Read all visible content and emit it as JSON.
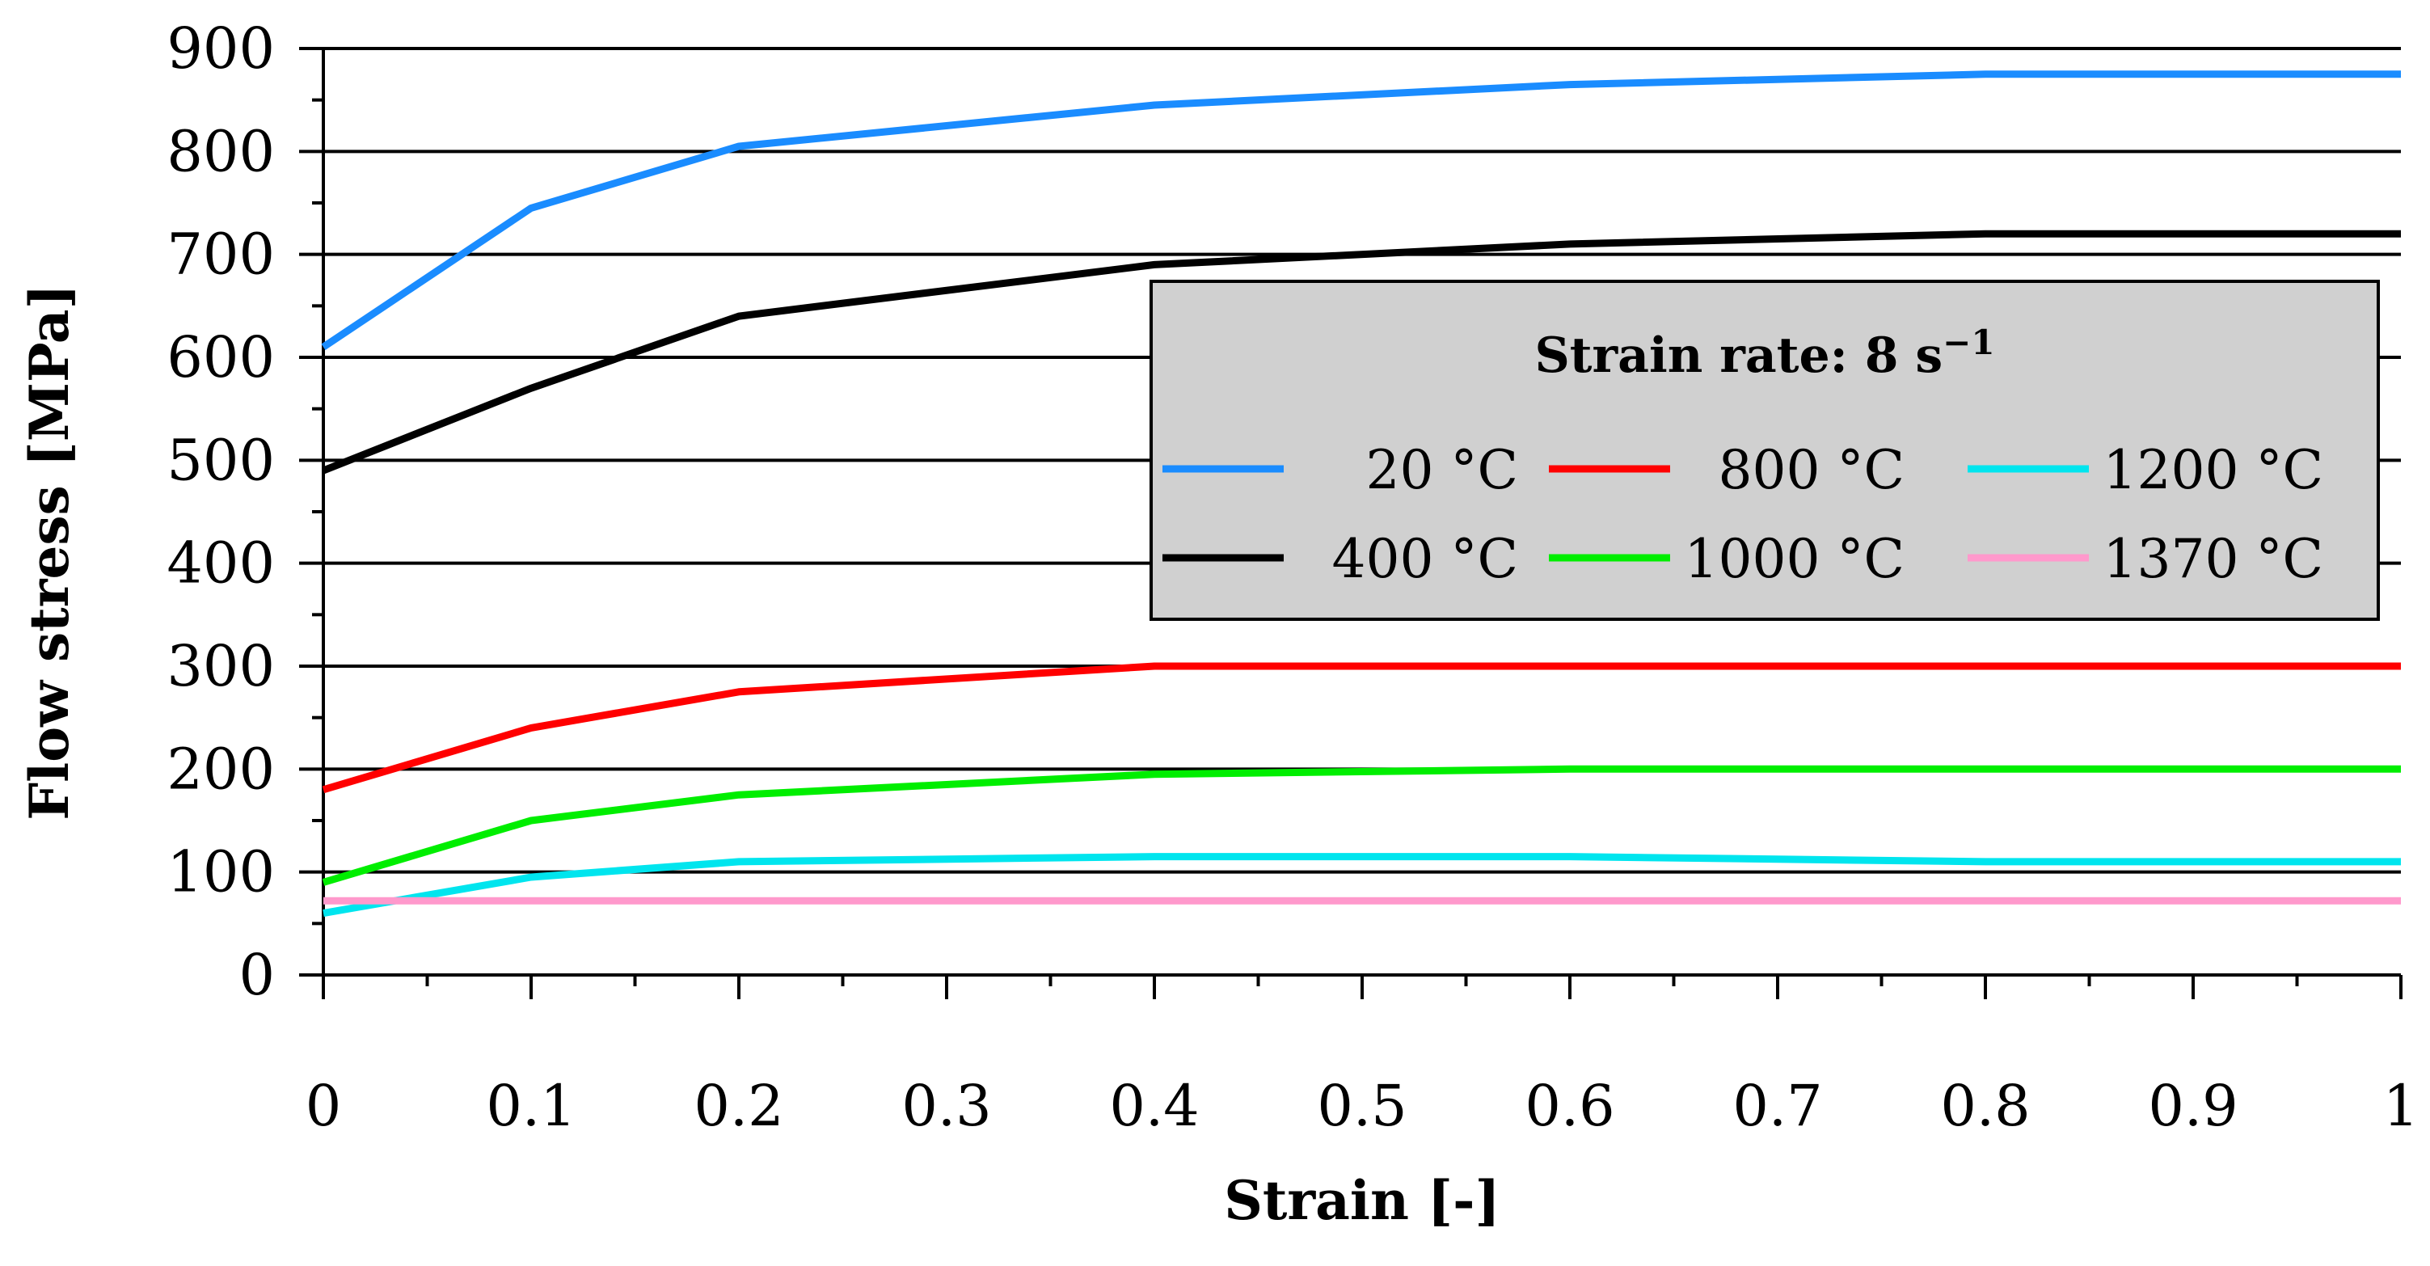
{
  "chart_data": {
    "type": "line",
    "xlabel": "Strain [-]",
    "ylabel": "Flow stress [MPa]",
    "xlim": [
      0,
      1
    ],
    "ylim": [
      0,
      900
    ],
    "x_ticks": [
      0,
      0.1,
      0.2,
      0.3,
      0.4,
      0.5,
      0.6,
      0.7,
      0.8,
      0.9,
      1
    ],
    "x_tick_labels": [
      "0",
      "0.1",
      "0.2",
      "0.3",
      "0.4",
      "0.5",
      "0.6",
      "0.7",
      "0.8",
      "0.9",
      "1"
    ],
    "y_ticks": [
      0,
      100,
      200,
      300,
      400,
      500,
      600,
      700,
      800,
      900
    ],
    "y_tick_labels": [
      "0",
      "100",
      "200",
      "300",
      "400",
      "500",
      "600",
      "700",
      "800",
      "900"
    ],
    "grid": "horizontal",
    "legend": {
      "title": "Strain rate: 8 s",
      "title_superscript": "−1",
      "placement": "upper-right",
      "background": "#d0d0d0"
    },
    "series": [
      {
        "name": "20 °C",
        "color": "#1a8cff",
        "x": [
          0,
          0.1,
          0.2,
          0.4,
          0.6,
          0.8,
          1.0
        ],
        "y": [
          610,
          745,
          805,
          845,
          865,
          875,
          875
        ]
      },
      {
        "name": "400 °C",
        "color": "#000000",
        "x": [
          0,
          0.1,
          0.2,
          0.4,
          0.6,
          0.8,
          1.0
        ],
        "y": [
          490,
          570,
          640,
          690,
          710,
          720,
          720
        ]
      },
      {
        "name": "800 °C",
        "color": "#ff0000",
        "x": [
          0,
          0.1,
          0.2,
          0.4,
          0.6,
          0.8,
          1.0
        ],
        "y": [
          180,
          240,
          275,
          300,
          300,
          300,
          300
        ]
      },
      {
        "name": "1000 °C",
        "color": "#00ee00",
        "x": [
          0,
          0.1,
          0.2,
          0.4,
          0.6,
          0.8,
          1.0
        ],
        "y": [
          90,
          150,
          175,
          195,
          200,
          200,
          200
        ]
      },
      {
        "name": "1200 °C",
        "color": "#00e5ee",
        "x": [
          0,
          0.1,
          0.2,
          0.4,
          0.6,
          0.8,
          1.0
        ],
        "y": [
          60,
          95,
          110,
          115,
          115,
          110,
          110
        ]
      },
      {
        "name": "1370 °C",
        "color": "#ff99cc",
        "x": [
          0,
          0.1,
          0.2,
          0.4,
          0.6,
          0.8,
          1.0
        ],
        "y": [
          72,
          72,
          72,
          72,
          72,
          72,
          72
        ]
      }
    ]
  }
}
